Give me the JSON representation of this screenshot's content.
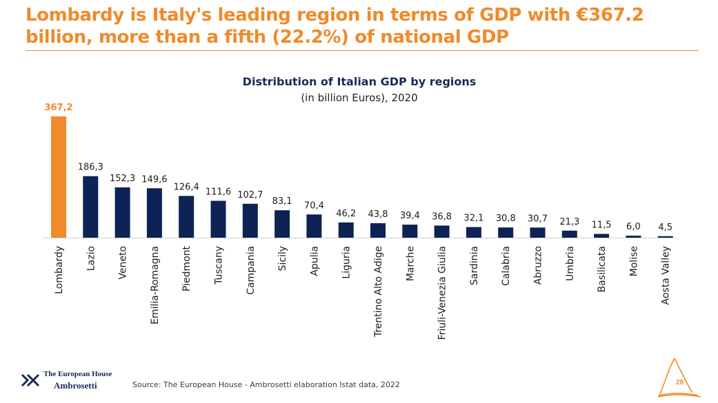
{
  "slide": {
    "headline": "Lombardy is Italy's leading region in terms of GDP with €367.2 billion, more than a fifth (22.2%) of national GDP",
    "source": "Source: The European House - Ambrosetti elaboration Istat data, 2022",
    "page_number": "28"
  },
  "logo": {
    "line1": "The European House",
    "line2": "Ambrosetti"
  },
  "colors": {
    "accent": "#F08A2A",
    "bar": "#0D2356",
    "highlight_bar": "#F08A2A",
    "text": "#1A2A57"
  },
  "chart_data": {
    "type": "bar",
    "title": "Distribution of Italian GDP by regions",
    "subtitle": "(in billion Euros), 2020",
    "categories": [
      "Lombardy",
      "Lazio",
      "Veneto",
      "Emilia-Romagna",
      "Piedmont",
      "Tuscany",
      "Campania",
      "Sicily",
      "Apulia",
      "Liguria",
      "Trentino Alto Adige",
      "Marche",
      "Friuli-Venezia Giulia",
      "Sardinia",
      "Calabria",
      "Abruzzo",
      "Umbria",
      "Basilicata",
      "Molise",
      "Aosta Valley"
    ],
    "values": [
      367.2,
      186.3,
      152.3,
      149.6,
      126.4,
      111.6,
      102.7,
      83.1,
      70.4,
      46.2,
      43.8,
      39.4,
      36.8,
      32.1,
      30.8,
      30.7,
      21.3,
      11.5,
      6.0,
      4.5
    ],
    "value_labels": [
      "367,2",
      "186,3",
      "152,3",
      "149,6",
      "126,4",
      "111,6",
      "102,7",
      "83,1",
      "70,4",
      "46,2",
      "43,8",
      "39,4",
      "36,8",
      "32,1",
      "30,8",
      "30,7",
      "21,3",
      "11,5",
      "6,0",
      "4,5"
    ],
    "highlight_index": 0,
    "xlabel": "",
    "ylabel": "",
    "ylim": [
      0,
      367.2
    ],
    "grid": false,
    "legend": "none"
  }
}
